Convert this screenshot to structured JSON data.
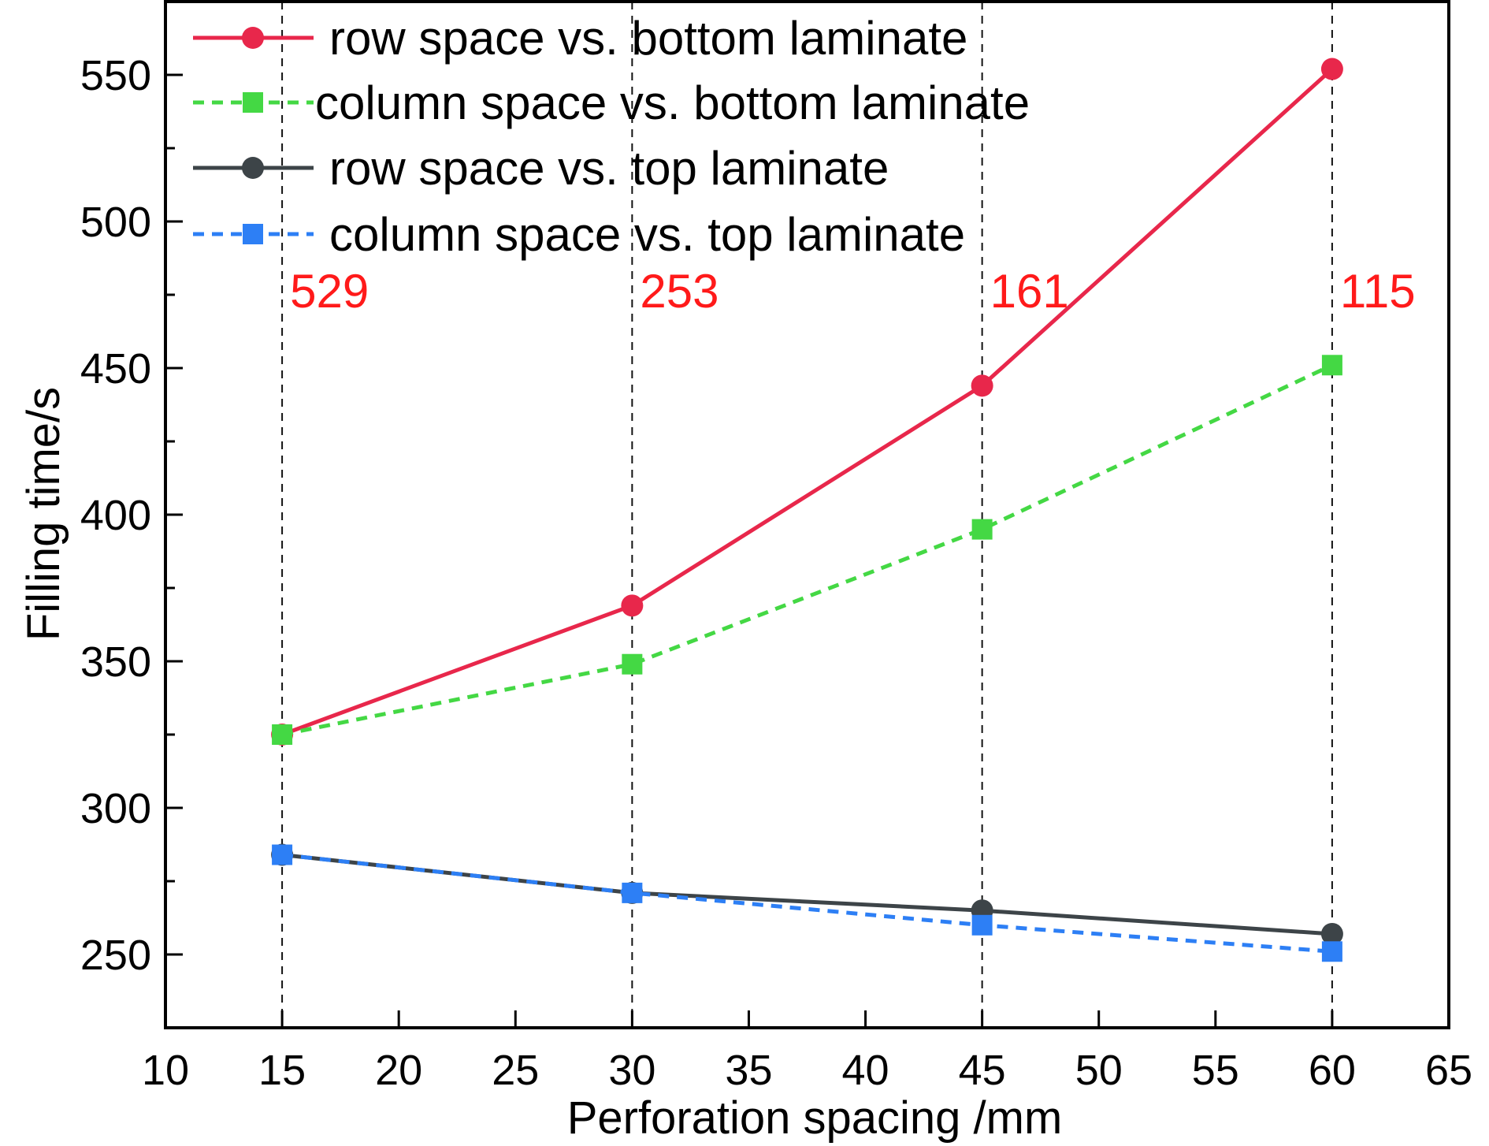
{
  "chart_data": {
    "type": "line",
    "title": "",
    "xlabel": "Perforation spacing /mm",
    "ylabel": "Filling time/s",
    "xlim": [
      10,
      65
    ],
    "ylim": [
      225,
      575
    ],
    "xticks": [
      10,
      15,
      20,
      25,
      30,
      35,
      40,
      45,
      50,
      55,
      60,
      65
    ],
    "yticks": [
      250,
      300,
      350,
      400,
      450,
      500,
      550
    ],
    "x": [
      15,
      30,
      45,
      60
    ],
    "series": [
      {
        "name": "row space vs. bottom laminate",
        "color": "#e8274b",
        "dash": false,
        "marker": "circle",
        "values": [
          325,
          369,
          444,
          552
        ]
      },
      {
        "name": "column space vs. bottom laminate",
        "color": "#44d844",
        "dash": true,
        "marker": "square",
        "values": [
          325,
          349,
          395,
          451
        ]
      },
      {
        "name": "row space vs. top laminate",
        "color": "#3d4448",
        "dash": false,
        "marker": "circle",
        "values": [
          284,
          271,
          265,
          257
        ]
      },
      {
        "name": "column space vs. top laminate",
        "color": "#2d7ff5",
        "dash": true,
        "marker": "square",
        "values": [
          284,
          271,
          260,
          251
        ]
      }
    ],
    "reference_lines_x": [
      15,
      30,
      45,
      60
    ],
    "annotations": [
      {
        "x": 15,
        "text": "529"
      },
      {
        "x": 30,
        "text": "253"
      },
      {
        "x": 45,
        "text": "161"
      },
      {
        "x": 60,
        "text": "115"
      }
    ],
    "annotation_color": "#ff1a1a",
    "legend_position": "top-left",
    "grid": false
  }
}
